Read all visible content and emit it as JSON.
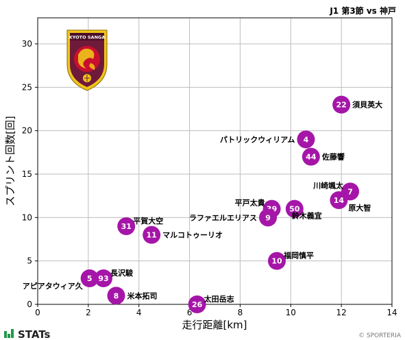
{
  "chart_data": {
    "type": "scatter",
    "title": "J1 第3節 vs 神戸",
    "xlabel": "走行距離[km]",
    "ylabel": "スプリント回数[回]",
    "xlim": [
      0,
      14
    ],
    "ylim": [
      0,
      33
    ],
    "xticks": [
      0,
      2,
      4,
      6,
      8,
      10,
      12,
      14
    ],
    "yticks": [
      0,
      5,
      10,
      15,
      20,
      25,
      30
    ],
    "grid": true,
    "marker_color": "#a516a8",
    "team_badge_text": "KYOTO SANGA",
    "points": [
      {
        "number": "22",
        "name": "須貝英大",
        "x": 12.0,
        "y": 23,
        "label_pos": "right"
      },
      {
        "number": "4",
        "name": "パトリックウィリアム",
        "x": 10.6,
        "y": 19,
        "label_pos": "left"
      },
      {
        "number": "44",
        "name": "佐藤響",
        "x": 10.8,
        "y": 17,
        "label_pos": "right"
      },
      {
        "number": "7",
        "name": "川崎颯太",
        "x": 12.35,
        "y": 13,
        "label_pos": "left-above"
      },
      {
        "number": "14",
        "name": "原大智",
        "x": 11.9,
        "y": 12,
        "label_pos": "right-below"
      },
      {
        "number": "39",
        "name": "平戸太貴",
        "x": 9.25,
        "y": 11,
        "label_pos": "left-above"
      },
      {
        "number": "50",
        "name": "鈴木義宜",
        "x": 10.15,
        "y": 11,
        "label_pos": "below"
      },
      {
        "number": "9",
        "name": "ラファエルエリアス",
        "x": 9.1,
        "y": 10,
        "label_pos": "left"
      },
      {
        "number": "31",
        "name": "平賀大空",
        "x": 3.5,
        "y": 9,
        "label_pos": "right-above"
      },
      {
        "number": "11",
        "name": "マルコトゥーリオ",
        "x": 4.5,
        "y": 8,
        "label_pos": "right"
      },
      {
        "number": "10",
        "name": "福岡慎平",
        "x": 9.45,
        "y": 5,
        "label_pos": "right-above"
      },
      {
        "number": "5",
        "name": "アピアタウィア久",
        "x": 2.05,
        "y": 3,
        "label_pos": "left-below"
      },
      {
        "number": "93",
        "name": "長沢駿",
        "x": 2.6,
        "y": 3,
        "label_pos": "right-above"
      },
      {
        "number": "8",
        "name": "米本拓司",
        "x": 3.1,
        "y": 1,
        "label_pos": "right"
      },
      {
        "number": "26",
        "name": "太田岳志",
        "x": 6.3,
        "y": 0,
        "label_pos": "right-above"
      }
    ]
  },
  "footer": {
    "brand": "STATs",
    "copyright": "© SPORTERIA"
  }
}
